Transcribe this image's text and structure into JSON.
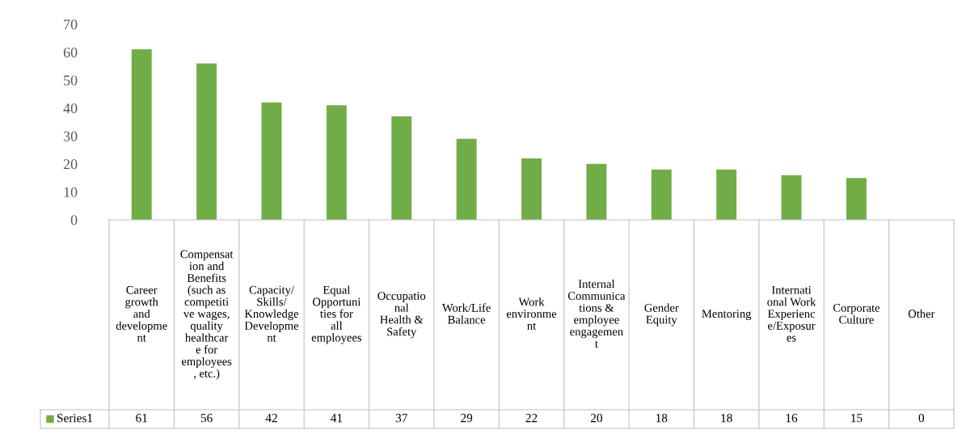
{
  "chart_data": {
    "type": "bar",
    "categories": [
      "Career growth and development",
      "Compensation and Benefits (such as competitive wages, quality healthcare for employees, etc.)",
      "Capacity/ Skills/ Knowledge Development",
      "Equal Opportunities for all employees",
      "Occupational Health & Safety",
      "Work/Life Balance",
      "Work environment",
      "Internal Communications & employee engagement",
      "Gender Equity",
      "Mentoring",
      "International Work Experience/Exposures",
      "Corporate Culture",
      "Other"
    ],
    "series": [
      {
        "name": "Series1",
        "color": "#70ad47",
        "values": [
          61,
          56,
          42,
          41,
          37,
          29,
          22,
          20,
          18,
          18,
          16,
          15,
          0
        ]
      }
    ],
    "ylim": [
      0,
      70
    ],
    "yticks": [
      0,
      10,
      20,
      30,
      40,
      50,
      60,
      70
    ],
    "grid": false,
    "data_labels": true,
    "legend": "bottom"
  }
}
